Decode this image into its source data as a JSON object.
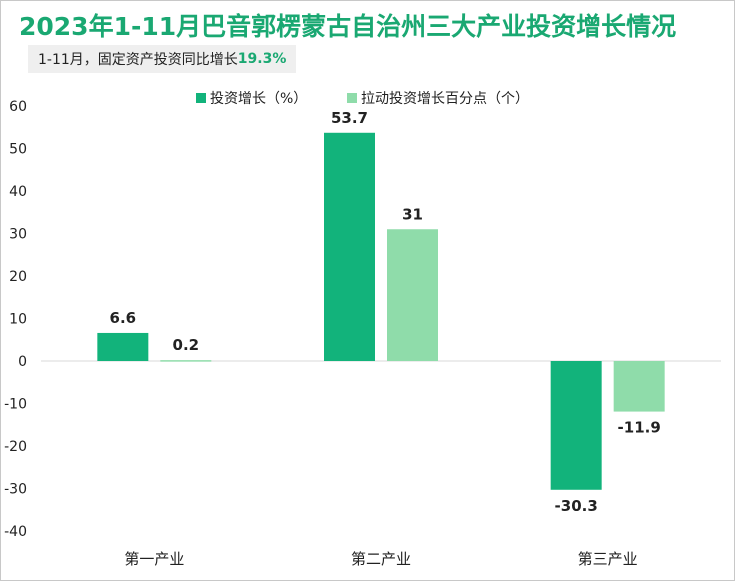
{
  "title": "2023年1-11月巴音郭楞蒙古自治州三大产业投资增长情况",
  "subtitle": {
    "prefix": "1-11月，固定资产投资同比增长",
    "highlight": "19.3%"
  },
  "colors": {
    "series1": "#12b37b",
    "series2": "#8fdcaa",
    "title": "#1aa872",
    "axis": "#d9d9d9"
  },
  "chart_data": {
    "type": "bar",
    "title": "2023年1-11月巴音郭楞蒙古自治州三大产业投资增长情况",
    "categories": [
      "第一产业",
      "第二产业",
      "第三产业"
    ],
    "series": [
      {
        "name": "投资增长（%）",
        "values": [
          6.6,
          53.7,
          -30.3
        ],
        "labels": [
          "6.6",
          "53.7",
          "-30.3"
        ]
      },
      {
        "name": "拉动投资增长百分点（个）",
        "values": [
          0.2,
          31,
          -11.9
        ],
        "labels": [
          "0.2",
          "31",
          "-11.9"
        ]
      }
    ],
    "ylim": [
      -40,
      60
    ],
    "yticks": [
      "60",
      "50",
      "40",
      "30",
      "20",
      "10",
      "0",
      "-10",
      "-20",
      "-30",
      "-40"
    ],
    "xlabel": "",
    "ylabel": "",
    "legend": "top-center"
  }
}
